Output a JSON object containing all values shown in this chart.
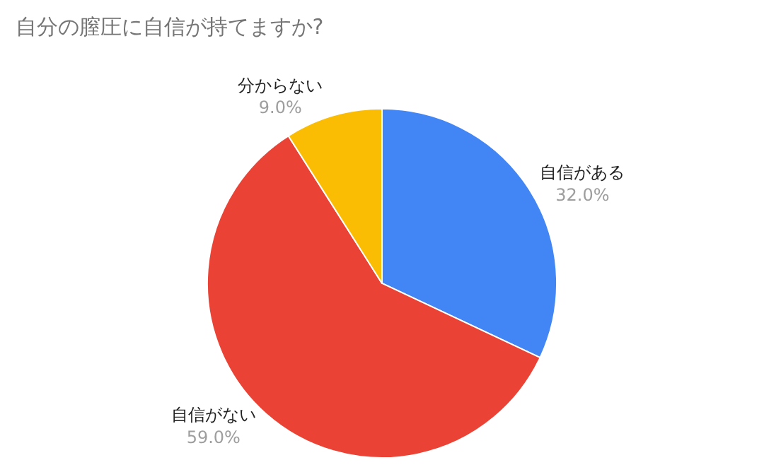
{
  "chart_data": {
    "type": "pie",
    "title": "自分の膣圧に自信が持てますか?",
    "categories": [
      "自信がある",
      "自信がない",
      "分からない"
    ],
    "values": [
      32.0,
      59.0,
      9.0
    ],
    "value_labels": [
      "32.0%",
      "59.0%",
      "9.0%"
    ],
    "colors": [
      "#4285f4",
      "#ea4335",
      "#fbbc04"
    ]
  }
}
